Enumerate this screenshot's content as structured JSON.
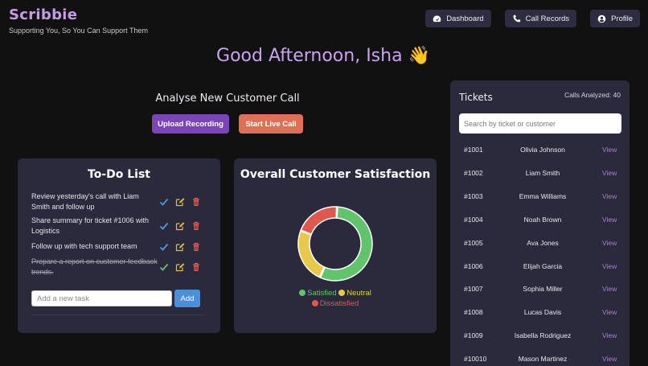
{
  "app": {
    "name": "Scribbie",
    "tagline": "Supporting You, So You Can Support Them"
  },
  "nav": {
    "dashboard": "Dashboard",
    "call_records": "Call Records",
    "profile": "Profile"
  },
  "greeting": "Good Afternoon, Isha 👋",
  "analyse": {
    "title": "Analyse New Customer Call",
    "upload_label": "Upload Recording",
    "live_label": "Start Live Call"
  },
  "todo": {
    "title": "To-Do List",
    "items": [
      {
        "text": "Review yesterday's call with Liam Smith and follow up",
        "done": false
      },
      {
        "text": "Share summary for ticket #1006 with Logistics",
        "done": false
      },
      {
        "text": "Follow up with tech support team",
        "done": false
      },
      {
        "text": "Prepare a report on customer feedback trends.",
        "done": true
      }
    ],
    "input_placeholder": "Add a new task",
    "add_label": "Add"
  },
  "satisfaction": {
    "title": "Overall Customer Satisfaction",
    "legend": {
      "satisfied": "Satisfied",
      "neutral": "Neutral",
      "dissatisfied": "Dissatisfied"
    },
    "colors": {
      "satisfied": "#5fc46a",
      "neutral": "#e8c848",
      "dissatisfied": "#e0574e"
    }
  },
  "chart_data": {
    "type": "pie",
    "title": "Overall Customer Satisfaction",
    "categories": [
      "Satisfied",
      "Neutral",
      "Dissatisfied"
    ],
    "values": [
      56,
      24,
      20
    ],
    "legend_position": "bottom"
  },
  "tickets": {
    "title": "Tickets",
    "calls_analyzed": "Calls Analyzed: 40",
    "search_placeholder": "Search by ticket or customer",
    "view_label": "View",
    "rows": [
      {
        "id": "#1001",
        "name": "Olivia Johnson"
      },
      {
        "id": "#1002",
        "name": "Liam Smith"
      },
      {
        "id": "#1003",
        "name": "Emma Williams"
      },
      {
        "id": "#1004",
        "name": "Noah Brown"
      },
      {
        "id": "#1005",
        "name": "Ava Jones"
      },
      {
        "id": "#1006",
        "name": "Elijah Garcia"
      },
      {
        "id": "#1007",
        "name": "Sophia Miller"
      },
      {
        "id": "#1008",
        "name": "Lucas Davis"
      },
      {
        "id": "#1009",
        "name": "Isabella Rodriguez"
      },
      {
        "id": "#10010",
        "name": "Mason Martinez"
      }
    ]
  }
}
